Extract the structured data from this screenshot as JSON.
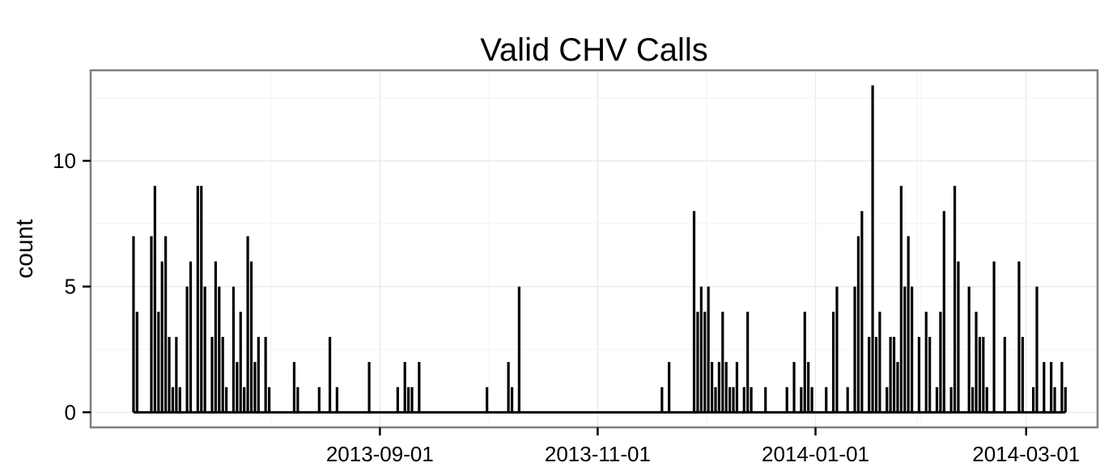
{
  "chart_data": {
    "type": "line",
    "title": "Valid CHV Calls",
    "xlabel": "",
    "ylabel": "count",
    "x_ticks": [
      "2013-09-01",
      "2013-11-01",
      "2014-01-01",
      "2014-03-01"
    ],
    "y_ticks": [
      0,
      5,
      10
    ],
    "xlim": [
      "2013-06-12",
      "2014-03-21"
    ],
    "ylim": [
      -0.6,
      13.6
    ],
    "grid": true,
    "series": [
      {
        "points": [
          [
            "2013-06-24",
            7
          ],
          [
            "2013-06-25",
            4
          ],
          [
            "2013-06-29",
            7
          ],
          [
            "2013-06-30",
            9
          ],
          [
            "2013-07-01",
            4
          ],
          [
            "2013-07-02",
            6
          ],
          [
            "2013-07-03",
            7
          ],
          [
            "2013-07-04",
            3
          ],
          [
            "2013-07-05",
            1
          ],
          [
            "2013-07-06",
            3
          ],
          [
            "2013-07-07",
            1
          ],
          [
            "2013-07-09",
            5
          ],
          [
            "2013-07-10",
            6
          ],
          [
            "2013-07-12",
            9
          ],
          [
            "2013-07-13",
            9
          ],
          [
            "2013-07-14",
            5
          ],
          [
            "2013-07-16",
            3
          ],
          [
            "2013-07-17",
            6
          ],
          [
            "2013-07-18",
            5
          ],
          [
            "2013-07-19",
            3
          ],
          [
            "2013-07-20",
            1
          ],
          [
            "2013-07-22",
            5
          ],
          [
            "2013-07-23",
            2
          ],
          [
            "2013-07-24",
            4
          ],
          [
            "2013-07-25",
            1
          ],
          [
            "2013-07-26",
            7
          ],
          [
            "2013-07-27",
            6
          ],
          [
            "2013-07-28",
            2
          ],
          [
            "2013-07-29",
            3
          ],
          [
            "2013-07-31",
            3
          ],
          [
            "2013-08-01",
            1
          ],
          [
            "2013-08-08",
            2
          ],
          [
            "2013-08-09",
            1
          ],
          [
            "2013-08-15",
            1
          ],
          [
            "2013-08-18",
            3
          ],
          [
            "2013-08-20",
            1
          ],
          [
            "2013-08-29",
            2
          ],
          [
            "2013-09-06",
            1
          ],
          [
            "2013-09-08",
            2
          ],
          [
            "2013-09-09",
            1
          ],
          [
            "2013-09-10",
            1
          ],
          [
            "2013-09-12",
            2
          ],
          [
            "2013-10-01",
            1
          ],
          [
            "2013-10-07",
            2
          ],
          [
            "2013-10-08",
            1
          ],
          [
            "2013-10-10",
            5
          ],
          [
            "2013-11-19",
            1
          ],
          [
            "2013-11-21",
            2
          ],
          [
            "2013-11-28",
            8
          ],
          [
            "2013-11-29",
            4
          ],
          [
            "2013-11-30",
            5
          ],
          [
            "2013-12-01",
            4
          ],
          [
            "2013-12-02",
            5
          ],
          [
            "2013-12-03",
            2
          ],
          [
            "2013-12-04",
            1
          ],
          [
            "2013-12-05",
            2
          ],
          [
            "2013-12-06",
            4
          ],
          [
            "2013-12-07",
            2
          ],
          [
            "2013-12-08",
            1
          ],
          [
            "2013-12-09",
            1
          ],
          [
            "2013-12-10",
            2
          ],
          [
            "2013-12-12",
            1
          ],
          [
            "2013-12-13",
            4
          ],
          [
            "2013-12-14",
            1
          ],
          [
            "2013-12-18",
            1
          ],
          [
            "2013-12-24",
            1
          ],
          [
            "2013-12-26",
            2
          ],
          [
            "2013-12-28",
            1
          ],
          [
            "2013-12-29",
            4
          ],
          [
            "2013-12-30",
            2
          ],
          [
            "2013-12-31",
            1
          ],
          [
            "2014-01-04",
            1
          ],
          [
            "2014-01-06",
            4
          ],
          [
            "2014-01-07",
            5
          ],
          [
            "2014-01-10",
            1
          ],
          [
            "2014-01-12",
            5
          ],
          [
            "2014-01-13",
            7
          ],
          [
            "2014-01-14",
            8
          ],
          [
            "2014-01-16",
            3
          ],
          [
            "2014-01-17",
            13
          ],
          [
            "2014-01-18",
            3
          ],
          [
            "2014-01-19",
            4
          ],
          [
            "2014-01-21",
            1
          ],
          [
            "2014-01-22",
            3
          ],
          [
            "2014-01-23",
            3
          ],
          [
            "2014-01-24",
            2
          ],
          [
            "2014-01-25",
            9
          ],
          [
            "2014-01-26",
            5
          ],
          [
            "2014-01-27",
            7
          ],
          [
            "2014-01-28",
            5
          ],
          [
            "2014-01-30",
            3
          ],
          [
            "2014-02-01",
            4
          ],
          [
            "2014-02-02",
            3
          ],
          [
            "2014-02-04",
            1
          ],
          [
            "2014-02-05",
            4
          ],
          [
            "2014-02-06",
            8
          ],
          [
            "2014-02-08",
            1
          ],
          [
            "2014-02-09",
            9
          ],
          [
            "2014-02-10",
            6
          ],
          [
            "2014-02-13",
            5
          ],
          [
            "2014-02-14",
            1
          ],
          [
            "2014-02-15",
            4
          ],
          [
            "2014-02-16",
            3
          ],
          [
            "2014-02-17",
            3
          ],
          [
            "2014-02-18",
            1
          ],
          [
            "2014-02-20",
            6
          ],
          [
            "2014-02-23",
            3
          ],
          [
            "2014-02-27",
            6
          ],
          [
            "2014-02-28",
            3
          ],
          [
            "2014-03-03",
            1
          ],
          [
            "2014-03-04",
            5
          ],
          [
            "2014-03-06",
            2
          ],
          [
            "2014-03-08",
            2
          ],
          [
            "2014-03-09",
            1
          ],
          [
            "2014-03-11",
            2
          ],
          [
            "2014-03-12",
            1
          ]
        ]
      }
    ]
  }
}
